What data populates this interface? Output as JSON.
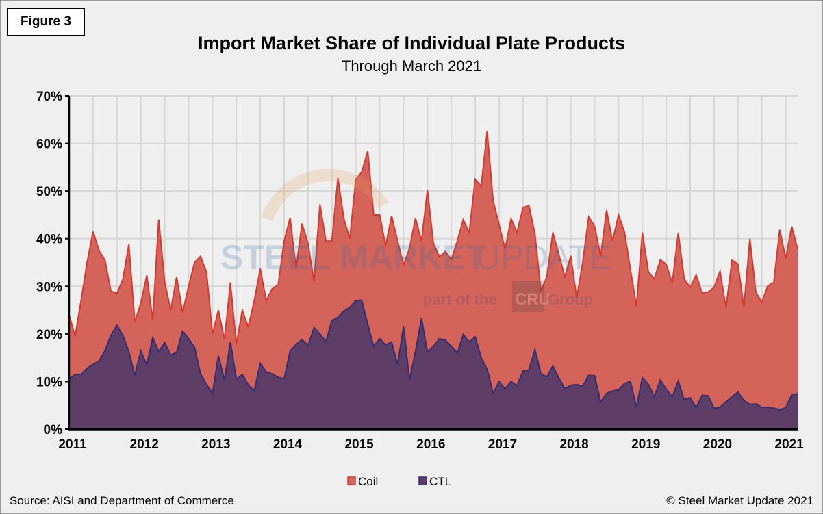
{
  "figure_label": "Figure 3",
  "source": "Source: AISI and Department of Commerce",
  "copyright": "© Steel Market Update 2021",
  "watermark": {
    "line1a": "STEEL MARKET",
    "line1b": "UPDATE",
    "line2": "part of the",
    "brand": "CRU",
    "line3": "Group"
  },
  "chart_data": {
    "type": "area",
    "title": "Import Market Share of Individual Plate Products",
    "subtitle": "Through March 2021",
    "x_start": "2011-01",
    "x_end": "2021-03",
    "x_frequency": "monthly",
    "x_tick_labels": [
      "2011",
      "2012",
      "2013",
      "2014",
      "2015",
      "2016",
      "2017",
      "2018",
      "2019",
      "2020",
      "2021"
    ],
    "y_tick_labels": [
      "0%",
      "10%",
      "20%",
      "30%",
      "40%",
      "50%",
      "60%",
      "70%"
    ],
    "ylim": [
      0,
      70
    ],
    "y_unit": "%",
    "grid": true,
    "legend_position": "bottom",
    "series": [
      {
        "name": "Coil",
        "color": "#d4645a",
        "line_color": "#d43a2f",
        "values": [
          24,
          19.5,
          27,
          35,
          41.5,
          37.5,
          35.5,
          29,
          28.5,
          31.5,
          38.8,
          22.5,
          26.5,
          32.3,
          23,
          44,
          31,
          25,
          32,
          24.5,
          30,
          35,
          36.3,
          33,
          20,
          25,
          18.8,
          30.8,
          17.8,
          25,
          21.5,
          27,
          33.7,
          27,
          29.5,
          30.3,
          39.5,
          44.4,
          33.7,
          43.2,
          39,
          31,
          47.2,
          39.5,
          39.5,
          52.8,
          44.2,
          40,
          52.4,
          54,
          58.4,
          45,
          45,
          38.5,
          44.8,
          39.5,
          34.5,
          38,
          44.3,
          39.5,
          50.3,
          39,
          36.2,
          37.3,
          35.6,
          39.5,
          44,
          41.3,
          52.5,
          51,
          62.6,
          48,
          43,
          37.8,
          44.2,
          41.3,
          46.5,
          47,
          41,
          29,
          32,
          41.3,
          36.8,
          32,
          36.4,
          27.5,
          35,
          44.6,
          42.6,
          36.3,
          46,
          39.5,
          45,
          41.4,
          33.5,
          25.8,
          41.3,
          33,
          31.6,
          35.6,
          34.6,
          30.7,
          41.2,
          31.6,
          29.8,
          32.4,
          28.6,
          28.8,
          29.8,
          33.2,
          25.5,
          35.5,
          34.7,
          25.6,
          40,
          28.7,
          26.7,
          30.1,
          30.8,
          41.9,
          35.8,
          42.6,
          37.8
        ]
      },
      {
        "name": "CTL",
        "color": "#5e3d66",
        "line_color": "#2e2f78",
        "values": [
          10.5,
          11.5,
          11.5,
          12.8,
          13.6,
          14.3,
          16.5,
          19.7,
          21.8,
          19.7,
          16.3,
          11.3,
          16.4,
          13.5,
          19.2,
          16.3,
          18.2,
          15.6,
          16.1,
          20.6,
          19,
          17.2,
          11.6,
          9.4,
          7.5,
          15.4,
          10.3,
          18.3,
          10.5,
          11.5,
          9.3,
          8.1,
          13.8,
          12,
          11.6,
          10.9,
          10.6,
          16.4,
          17.8,
          18.8,
          17.6,
          21.3,
          20,
          18.4,
          22.8,
          23.5,
          24.8,
          25.6,
          27,
          27.1,
          22,
          17.4,
          19,
          17.7,
          18.3,
          13.6,
          21.5,
          10.3,
          16.3,
          23.3,
          16.2,
          17.4,
          19,
          18.7,
          17.4,
          16,
          19.9,
          18.3,
          19.4,
          15,
          12.6,
          7.5,
          10,
          8.5,
          10,
          9.1,
          12.2,
          12.4,
          16.7,
          11.6,
          11,
          13.3,
          10.8,
          8.5,
          9.2,
          9.4,
          9,
          11.3,
          11.2,
          5.7,
          7.5,
          8,
          8.3,
          9.6,
          10,
          4.6,
          10.8,
          9.4,
          6.8,
          10.3,
          8.4,
          6.8,
          10.1,
          6.2,
          6.6,
          4.5,
          7.1,
          7,
          4.4,
          4.6,
          5.7,
          6.8,
          7.8,
          6,
          5.2,
          5.3,
          4.6,
          4.6,
          4.4,
          4.1,
          4.5,
          7.2,
          7.5
        ]
      }
    ]
  }
}
